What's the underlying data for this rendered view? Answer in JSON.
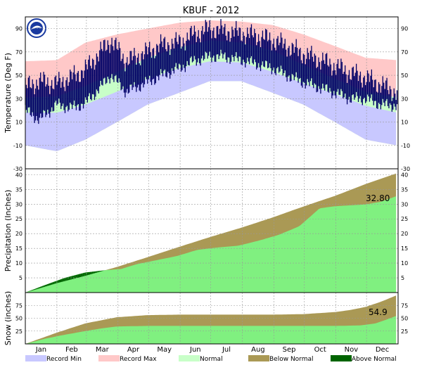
{
  "title": "KBUF - 2012",
  "colors": {
    "record_min": "#c8c8ff",
    "record_max": "#ffc8c8",
    "normal": "#c8ffc8",
    "observed_temp": "#000066",
    "precip_normal": "#aa9955",
    "precip_actual": "#80f080",
    "above_normal": "#006400",
    "grid": "#999999"
  },
  "months": [
    "Jan",
    "Feb",
    "Mar",
    "Apr",
    "May",
    "Jun",
    "Jul",
    "Aug",
    "Sep",
    "Oct",
    "Nov",
    "Dec"
  ],
  "legend": [
    {
      "label": "Record Min",
      "color_key": "record_min"
    },
    {
      "label": "Record Max",
      "color_key": "record_max"
    },
    {
      "label": "Normal",
      "color_key": "normal"
    },
    {
      "label": "Below Normal",
      "color_key": "precip_normal"
    },
    {
      "label": "Above Normal",
      "color_key": "above_normal"
    }
  ],
  "chart_data": [
    {
      "type": "area",
      "panel": "temperature",
      "ylabel": "Temperature (Deg F)",
      "ylim": [
        -30,
        100
      ],
      "yticks": [
        -30,
        -10,
        10,
        30,
        50,
        70,
        90
      ],
      "x_unit": "day of year",
      "record_max": {
        "x": [
          1,
          32,
          60,
          91,
          121,
          152,
          182,
          213,
          244,
          274,
          305,
          335,
          366
        ],
        "y": [
          62,
          63,
          78,
          85,
          90,
          95,
          97,
          96,
          93,
          85,
          75,
          65,
          63
        ]
      },
      "record_min": {
        "x": [
          1,
          32,
          60,
          91,
          121,
          152,
          182,
          213,
          244,
          274,
          305,
          335,
          366
        ],
        "y": [
          -10,
          -15,
          -5,
          10,
          25,
          35,
          45,
          45,
          35,
          25,
          10,
          -5,
          -10
        ]
      },
      "normal_high": {
        "x": [
          1,
          32,
          60,
          91,
          121,
          152,
          182,
          213,
          244,
          274,
          305,
          335,
          366
        ],
        "y": [
          31,
          32,
          41,
          53,
          65,
          74,
          80,
          78,
          71,
          59,
          47,
          36,
          31
        ]
      },
      "normal_low": {
        "x": [
          1,
          32,
          60,
          91,
          121,
          152,
          182,
          213,
          244,
          274,
          305,
          335,
          366
        ],
        "y": [
          18,
          18,
          25,
          36,
          47,
          56,
          62,
          61,
          53,
          43,
          34,
          24,
          18
        ]
      },
      "observed_high": {
        "x": [
          1,
          15,
          32,
          46,
          60,
          75,
          85,
          100,
          121,
          135,
          152,
          166,
          182,
          196,
          213,
          227,
          244,
          258,
          274,
          288,
          305,
          320,
          335,
          350,
          366
        ],
        "y": [
          40,
          45,
          43,
          48,
          55,
          70,
          80,
          62,
          70,
          76,
          78,
          85,
          90,
          88,
          86,
          84,
          80,
          75,
          68,
          64,
          58,
          52,
          48,
          42,
          35
        ]
      },
      "observed_low": {
        "x": [
          1,
          15,
          32,
          46,
          60,
          75,
          85,
          100,
          121,
          135,
          152,
          166,
          182,
          196,
          213,
          227,
          244,
          258,
          274,
          288,
          305,
          320,
          335,
          350,
          366
        ],
        "y": [
          20,
          12,
          25,
          22,
          26,
          40,
          50,
          36,
          44,
          50,
          56,
          62,
          66,
          66,
          63,
          60,
          56,
          50,
          44,
          40,
          35,
          30,
          30,
          25,
          24
        ]
      }
    },
    {
      "type": "area",
      "panel": "precipitation",
      "ylabel": "Precipitation (Inches)",
      "ylim": [
        0,
        42
      ],
      "yticks": [
        5,
        10,
        15,
        20,
        25,
        30,
        35,
        40
      ],
      "x_unit": "day of year",
      "annotation": "32.80",
      "normal": {
        "x": [
          1,
          32,
          60,
          91,
          121,
          152,
          182,
          213,
          244,
          274,
          305,
          335,
          366
        ],
        "y": [
          0,
          3.2,
          5.7,
          8.7,
          12.0,
          15.5,
          18.8,
          22.0,
          25.5,
          29.2,
          32.8,
          36.8,
          40.5
        ]
      },
      "actual": {
        "x": [
          1,
          20,
          40,
          60,
          80,
          95,
          110,
          130,
          150,
          170,
          190,
          210,
          230,
          250,
          270,
          290,
          305,
          320,
          335,
          350,
          366
        ],
        "y": [
          0,
          2.5,
          5.0,
          6.8,
          7.6,
          8.0,
          9.6,
          11.0,
          12.4,
          14.5,
          15.3,
          15.9,
          17.6,
          19.6,
          22.5,
          28.6,
          29.3,
          29.6,
          29.9,
          30.8,
          32.8
        ]
      }
    },
    {
      "type": "area",
      "panel": "snow",
      "ylabel": "Snow (inches)",
      "ylim": [
        0,
        100
      ],
      "yticks": [
        25,
        50,
        75
      ],
      "x_unit": "day of year",
      "annotation": "54.9",
      "normal": {
        "x": [
          1,
          32,
          60,
          91,
          121,
          152,
          200,
          244,
          274,
          305,
          320,
          335,
          350,
          366
        ],
        "y": [
          0,
          22,
          40,
          52,
          56,
          57,
          57,
          57,
          58,
          62,
          66,
          72,
          82,
          95
        ]
      },
      "actual": {
        "x": [
          1,
          20,
          40,
          60,
          75,
          91,
          121,
          200,
          305,
          330,
          345,
          355,
          366
        ],
        "y": [
          0,
          10,
          18,
          25,
          30,
          34,
          35,
          35,
          35,
          36,
          40,
          47,
          55
        ]
      }
    }
  ]
}
